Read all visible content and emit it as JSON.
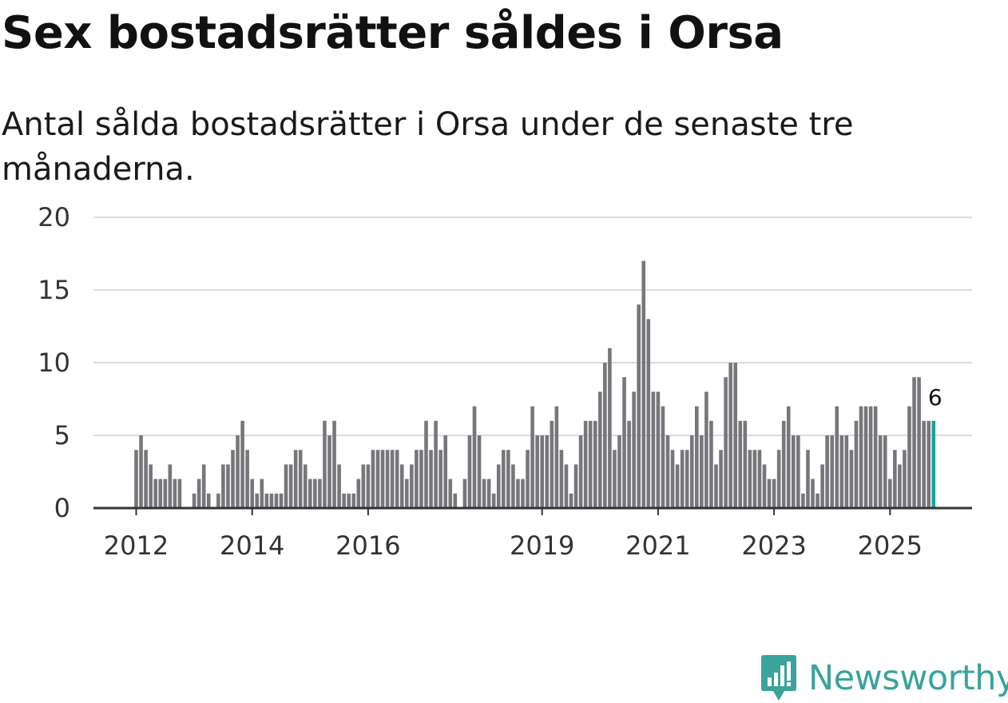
{
  "title": "Sex bostadsrätter såldes i Orsa",
  "subtitle": "Antal sålda bostadsrätter i Orsa under de senaste tre månaderna.",
  "brand": {
    "name": "Newsworthy",
    "icon": "bar-chart-logo-icon",
    "color": "#3aa39a"
  },
  "colors": {
    "bar": "#77767b",
    "highlight": "#1ba396",
    "grid": "#dcdcdc",
    "axis": "#333333"
  },
  "chart_data": {
    "type": "bar",
    "title": "Sex bostadsrätter såldes i Orsa",
    "subtitle": "Antal sålda bostadsrätter i Orsa under de senaste tre månaderna.",
    "xlabel": "",
    "ylabel": "",
    "ylim": [
      0,
      20
    ],
    "yticks": [
      0,
      5,
      10,
      15,
      20
    ],
    "grid": true,
    "x_start": "2012-01",
    "frequency": "monthly",
    "xtick_labels": [
      {
        "label": "2012",
        "month_index": 0
      },
      {
        "label": "2014",
        "month_index": 24
      },
      {
        "label": "2016",
        "month_index": 48
      },
      {
        "label": "2019",
        "month_index": 84
      },
      {
        "label": "2021",
        "month_index": 108
      },
      {
        "label": "2023",
        "month_index": 132
      },
      {
        "label": "2025",
        "month_index": 156
      }
    ],
    "values": [
      4,
      5,
      4,
      3,
      2,
      2,
      2,
      3,
      2,
      2,
      0,
      0,
      1,
      2,
      3,
      1,
      0,
      1,
      3,
      3,
      4,
      5,
      6,
      4,
      2,
      1,
      2,
      1,
      1,
      1,
      1,
      3,
      3,
      4,
      4,
      3,
      2,
      2,
      2,
      6,
      5,
      6,
      3,
      1,
      1,
      1,
      2,
      3,
      3,
      4,
      4,
      4,
      4,
      4,
      4,
      3,
      2,
      3,
      4,
      4,
      6,
      4,
      6,
      4,
      5,
      2,
      1,
      0,
      2,
      5,
      7,
      5,
      2,
      2,
      1,
      3,
      4,
      4,
      3,
      2,
      2,
      4,
      7,
      5,
      5,
      5,
      6,
      7,
      4,
      3,
      1,
      3,
      5,
      6,
      6,
      6,
      8,
      10,
      11,
      4,
      5,
      9,
      6,
      8,
      14,
      17,
      13,
      8,
      8,
      7,
      5,
      4,
      3,
      4,
      4,
      5,
      7,
      5,
      8,
      6,
      3,
      4,
      9,
      10,
      10,
      6,
      6,
      4,
      4,
      4,
      3,
      2,
      2,
      4,
      6,
      7,
      5,
      5,
      1,
      4,
      2,
      1,
      3,
      5,
      5,
      7,
      5,
      5,
      4,
      6,
      7,
      7,
      7,
      7,
      5,
      5,
      2,
      4,
      3,
      4,
      7,
      9,
      9,
      6,
      6,
      6
    ],
    "highlight_last": true,
    "last_value_label": "6"
  }
}
